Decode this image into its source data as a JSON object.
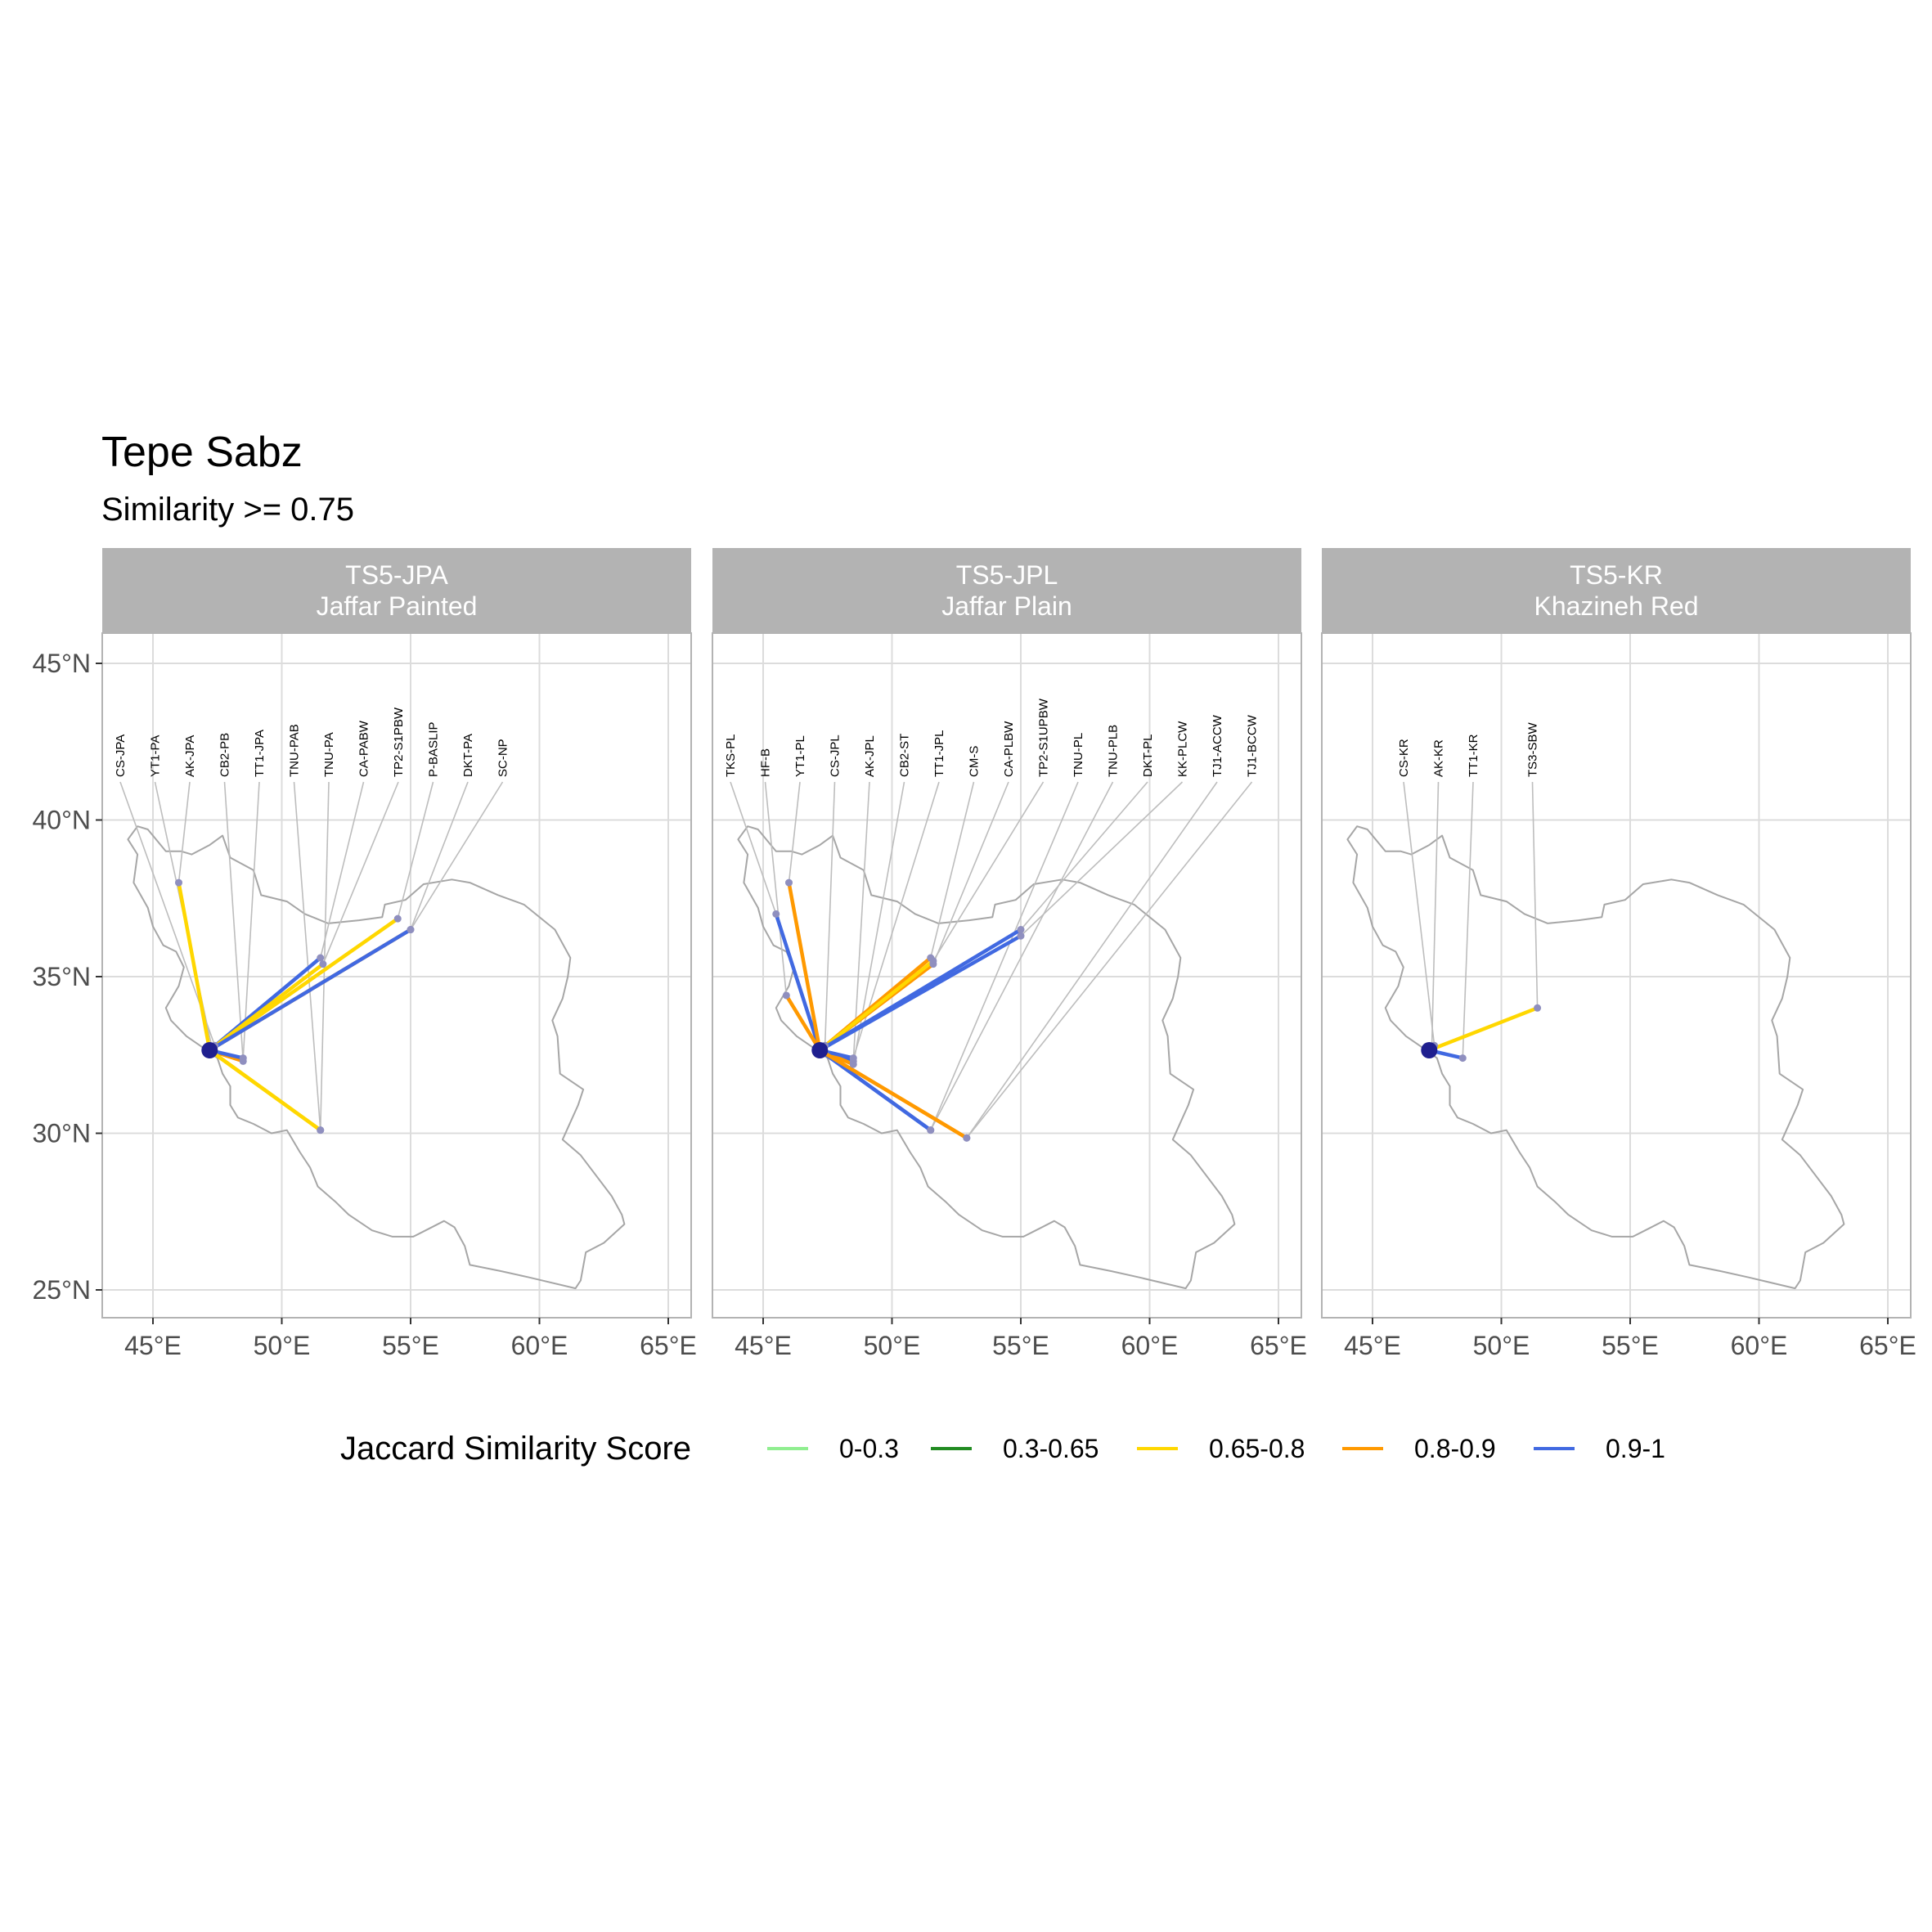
{
  "title": "Tepe Sabz",
  "subtitle": "Similarity >= 0.75",
  "legend": {
    "title": "Jaccard Similarity Score",
    "entries": [
      {
        "label": "0-0.3",
        "color": "#90ee90"
      },
      {
        "label": "0.3-0.65",
        "color": "#228b22"
      },
      {
        "label": "0.65-0.8",
        "color": "#ffd700"
      },
      {
        "label": "0.8-0.9",
        "color": "#ff9900"
      },
      {
        "label": "0.9-1",
        "color": "#4169e1"
      }
    ]
  },
  "colors": {
    "origin_point": "#1f1f8f",
    "site_point": "#8f8fbf"
  },
  "chart_data": [
    {
      "type": "map-network",
      "strip": {
        "line1": "TS5-JPA",
        "line2": "Jaffar Painted"
      },
      "x_ticks": [
        45,
        50,
        55,
        60,
        65
      ],
      "x_tick_labels": [
        "45°E",
        "50°E",
        "55°E",
        "60°E",
        "65°E"
      ],
      "y_ticks": [
        25,
        30,
        35,
        40,
        45
      ],
      "y_tick_labels": [
        "25°N",
        "30°N",
        "35°N",
        "40°N",
        "45°N"
      ],
      "xlim": [
        43,
        66
      ],
      "ylim": [
        24.2,
        46.0
      ],
      "grid": true,
      "origin": {
        "lon": 47.2,
        "lat": 32.65
      },
      "links": [
        {
          "label": "CS-JPA",
          "lon": 47.4,
          "lat": 32.8,
          "band": "0.9-1"
        },
        {
          "label": "YT1-PA",
          "lon": 47.3,
          "lat": 32.7,
          "band": "0.9-1"
        },
        {
          "label": "AK-JPA",
          "lon": 46.0,
          "lat": 38.0,
          "band": "0.65-0.8"
        },
        {
          "label": "CB2-PB",
          "lon": 48.5,
          "lat": 32.3,
          "band": "0.8-0.9"
        },
        {
          "label": "TT1-JPA",
          "lon": 48.5,
          "lat": 32.4,
          "band": "0.9-1"
        },
        {
          "label": "TNU-PAB",
          "lon": 51.5,
          "lat": 30.1,
          "band": "0.65-0.8"
        },
        {
          "label": "TNU-PA",
          "lon": 51.5,
          "lat": 30.1,
          "band": "0.65-0.8"
        },
        {
          "label": "CA-PABW",
          "lon": 51.5,
          "lat": 35.6,
          "band": "0.9-1"
        },
        {
          "label": "TP2-S1PBW",
          "lon": 51.6,
          "lat": 35.4,
          "band": "0.65-0.8"
        },
        {
          "label": "P-BASLIP",
          "lon": 54.5,
          "lat": 36.85,
          "band": "0.65-0.8"
        },
        {
          "label": "DKT-PA",
          "lon": 55.0,
          "lat": 36.5,
          "band": "0.8-0.9"
        },
        {
          "label": "SC-NP",
          "lon": 55.0,
          "lat": 36.5,
          "band": "0.9-1"
        }
      ]
    },
    {
      "type": "map-network",
      "strip": {
        "line1": "TS5-JPL",
        "line2": "Jaffar Plain"
      },
      "x_ticks": [
        45,
        50,
        55,
        60,
        65
      ],
      "x_tick_labels": [
        "45°E",
        "50°E",
        "55°E",
        "60°E",
        "65°E"
      ],
      "y_ticks": [
        25,
        30,
        35,
        40,
        45
      ],
      "y_tick_labels": [
        "25°N",
        "30°N",
        "35°N",
        "40°N",
        "45°N"
      ],
      "xlim": [
        43,
        66
      ],
      "ylim": [
        24.2,
        46.0
      ],
      "grid": true,
      "origin": {
        "lon": 47.2,
        "lat": 32.65
      },
      "links": [
        {
          "label": "TKS-PL",
          "lon": 45.5,
          "lat": 37.0,
          "band": "0.9-1"
        },
        {
          "label": "HF-B",
          "lon": 45.9,
          "lat": 34.4,
          "band": "0.8-0.9"
        },
        {
          "label": "YT1-PL",
          "lon": 46.0,
          "lat": 38.0,
          "band": "0.8-0.9"
        },
        {
          "label": "CS-JPL",
          "lon": 47.4,
          "lat": 32.8,
          "band": "0.9-1"
        },
        {
          "label": "AK-JPL",
          "lon": 48.5,
          "lat": 32.3,
          "band": "0.9-1"
        },
        {
          "label": "CB2-ST",
          "lon": 48.5,
          "lat": 32.2,
          "band": "0.8-0.9"
        },
        {
          "label": "TT1-JPL",
          "lon": 48.5,
          "lat": 32.4,
          "band": "0.9-1"
        },
        {
          "label": "CM-S",
          "lon": 51.5,
          "lat": 35.6,
          "band": "0.8-0.9"
        },
        {
          "label": "CA-PLBW",
          "lon": 51.6,
          "lat": 35.4,
          "band": "0.8-0.9"
        },
        {
          "label": "TP2-S1UPBW",
          "lon": 51.6,
          "lat": 35.5,
          "band": "0.65-0.8"
        },
        {
          "label": "TNU-PL",
          "lon": 51.5,
          "lat": 30.1,
          "band": "0.9-1"
        },
        {
          "label": "TNU-PLB",
          "lon": 51.5,
          "lat": 30.1,
          "band": "0.9-1"
        },
        {
          "label": "DKT-PL",
          "lon": 55.0,
          "lat": 36.5,
          "band": "0.9-1"
        },
        {
          "label": "KK-PLCW",
          "lon": 55.0,
          "lat": 36.3,
          "band": "0.9-1"
        },
        {
          "label": "TJ1-ACCW",
          "lon": 52.9,
          "lat": 29.85,
          "band": "0.8-0.9"
        },
        {
          "label": "TJ1-BCCW",
          "lon": 52.9,
          "lat": 29.85,
          "band": "0.8-0.9"
        }
      ]
    },
    {
      "type": "map-network",
      "strip": {
        "line1": "TS5-KR",
        "line2": "Khazineh Red"
      },
      "x_ticks": [
        45,
        50,
        55,
        60,
        65
      ],
      "x_tick_labels": [
        "45°E",
        "50°E",
        "55°E",
        "60°E",
        "65°E"
      ],
      "y_ticks": [
        25,
        30,
        35,
        40,
        45
      ],
      "y_tick_labels": [
        "25°N",
        "30°N",
        "35°N",
        "40°N",
        "45°N"
      ],
      "xlim": [
        43,
        66
      ],
      "ylim": [
        24.2,
        46.0
      ],
      "grid": true,
      "origin": {
        "lon": 47.2,
        "lat": 32.65
      },
      "links": [
        {
          "label": "CS-KR",
          "lon": 47.4,
          "lat": 32.8,
          "band": "0.9-1"
        },
        {
          "label": "AK-KR",
          "lon": 47.3,
          "lat": 32.7,
          "band": "0.9-1"
        },
        {
          "label": "TT1-KR",
          "lon": 48.5,
          "lat": 32.4,
          "band": "0.9-1"
        },
        {
          "label": "TS3-SBW",
          "lon": 51.4,
          "lat": 34.0,
          "band": "0.65-0.8"
        }
      ]
    }
  ]
}
